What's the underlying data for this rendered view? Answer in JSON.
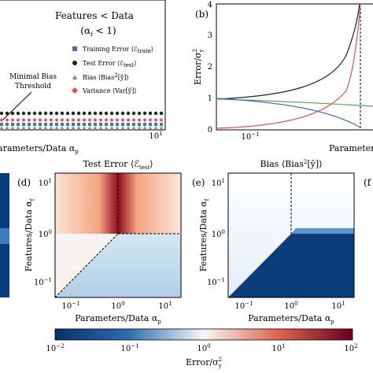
{
  "panel_a": {
    "legend_title": "Features < Data",
    "legend_subtitle": [
      "(α",
      "f",
      " < 1)"
    ],
    "legend": [
      [
        "Training Error ⟨ℰ",
        "train",
        "⟩"
      ],
      [
        "Test Error ⟨ℰ",
        "test",
        "⟩"
      ],
      [
        "Bias ⟨Bias",
        "2",
        "[ŷ]⟩"
      ],
      [
        "Variance ⟨Var[ŷ]⟩"
      ]
    ],
    "annotation": [
      "Minimal Bias",
      "Threshold"
    ],
    "x_tick": [
      "10",
      "1"
    ],
    "x_label": [
      "Parameters/Data α",
      "p"
    ]
  },
  "panel_b": {
    "label": "(b)",
    "y_ticks": [
      "0",
      "1",
      "2",
      "3",
      "4"
    ],
    "y_label": [
      "Error/σ",
      "y",
      "2"
    ],
    "x_tick": [
      "10",
      "−1"
    ],
    "x_label": "Parameters"
  },
  "panel_d": {
    "label": "(d)",
    "title": [
      "Test Error ⟨ℰ",
      "test",
      "⟩"
    ],
    "y_ticks": [
      [
        "10",
        "1"
      ],
      [
        "10",
        "0"
      ],
      [
        "10",
        "−1"
      ]
    ],
    "x_ticks": [
      [
        "10",
        "−1"
      ],
      [
        "10",
        "0"
      ],
      [
        "10",
        "1"
      ]
    ],
    "x_label": [
      "Parameters/Data α",
      "p"
    ],
    "y_label": [
      "Features/Data α",
      "f"
    ]
  },
  "panel_e": {
    "label": "(e)",
    "title": [
      "Bias ⟨Bias",
      "2",
      "[ŷ]⟩"
    ],
    "y_ticks": [
      [
        "10",
        "1"
      ],
      [
        "10",
        "0"
      ],
      [
        "10",
        "−1"
      ]
    ],
    "x_ticks": [
      [
        "10",
        "−1"
      ],
      [
        "10",
        "0"
      ],
      [
        "10",
        "1"
      ]
    ],
    "x_label": [
      "Parameters/Data α",
      "p"
    ],
    "y_label": [
      "Features/Data α",
      "f"
    ]
  },
  "panel_f": {
    "label": "(f"
  },
  "colorbar": {
    "ticks": [
      [
        "10",
        "−2"
      ],
      [
        "10",
        "−1"
      ],
      [
        "10",
        "0"
      ],
      [
        "10",
        "1"
      ],
      [
        "10",
        "2"
      ]
    ],
    "label": [
      "Error/σ",
      "y",
      "2"
    ]
  }
}
